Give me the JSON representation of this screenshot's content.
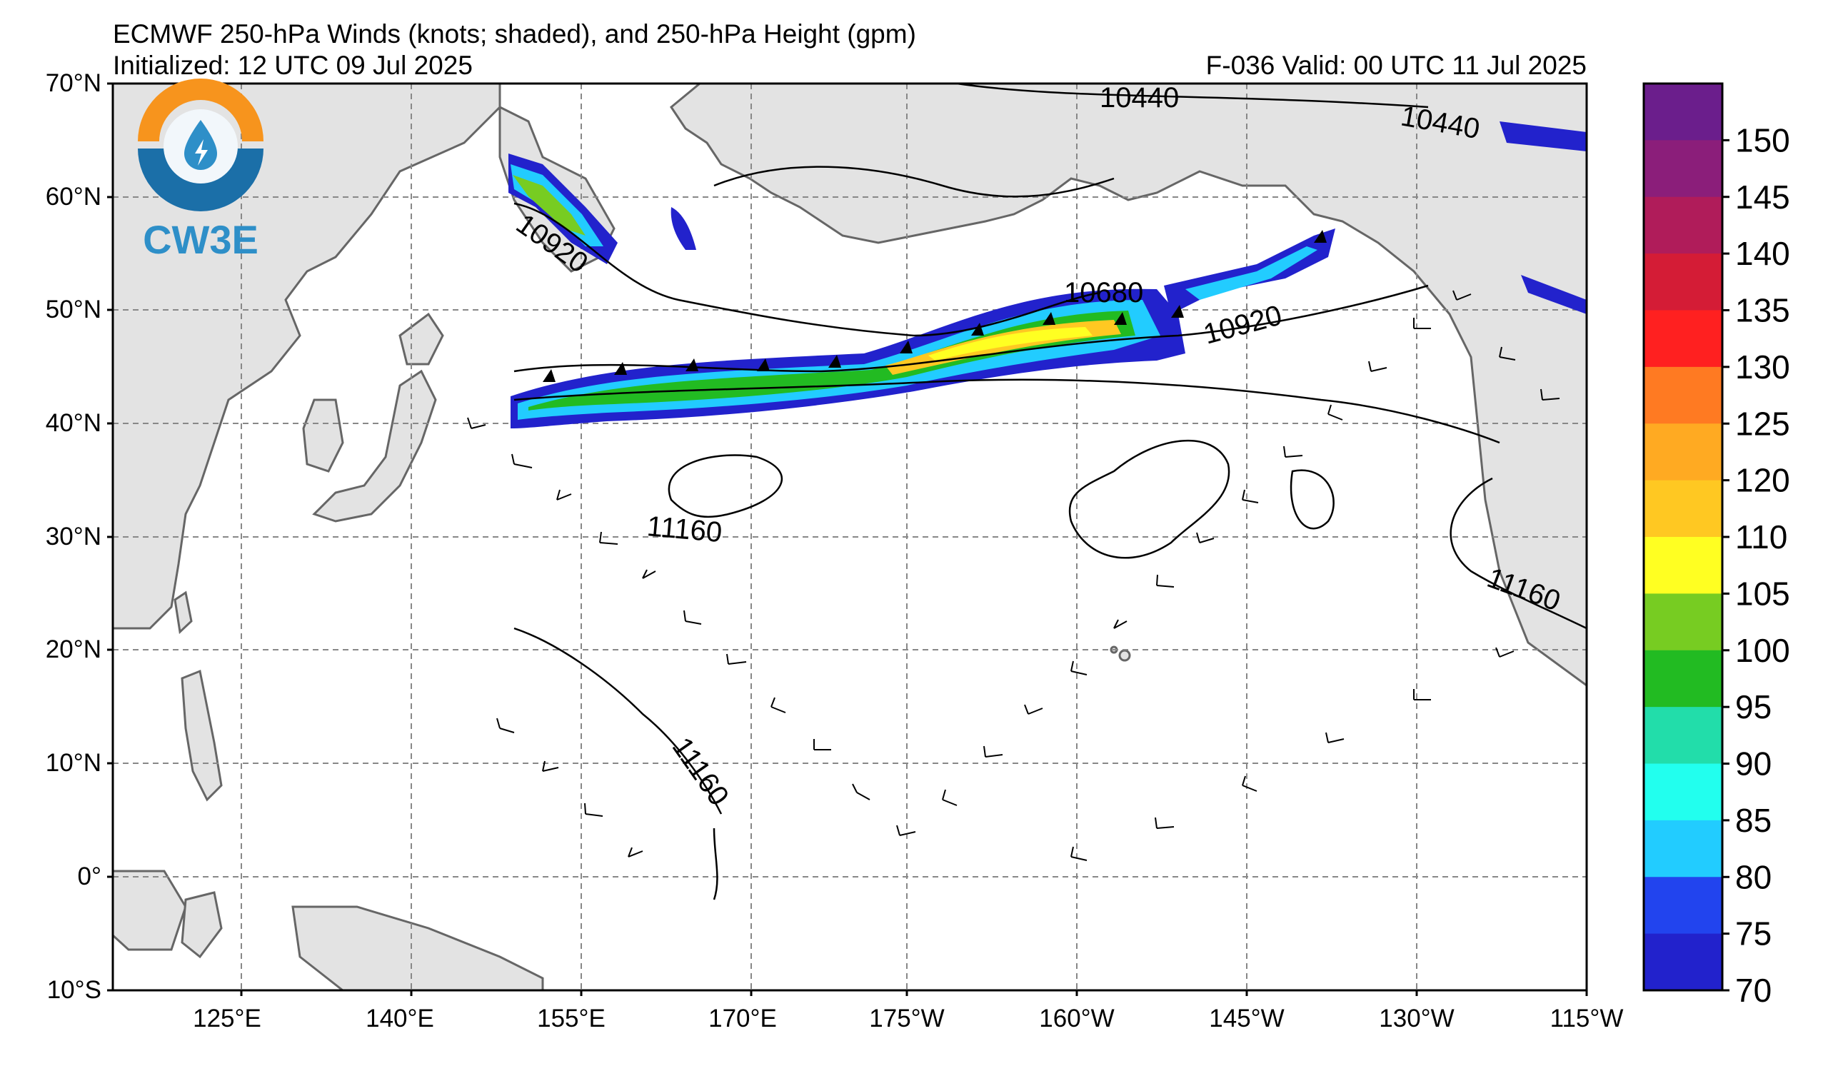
{
  "header": {
    "title": "ECMWF 250-hPa Winds (knots; shaded), and 250-hPa Height (gpm)",
    "initialized": "Initialized: 12 UTC 09 Jul 2025",
    "forecast": "F-036  Valid: 00 UTC 11 Jul 2025"
  },
  "logo": {
    "text": "CW3E",
    "icon": "water-drop-lightning-icon"
  },
  "map": {
    "lat_labels": [
      "70°N",
      "60°N",
      "50°N",
      "40°N",
      "30°N",
      "20°N",
      "10°N",
      "0°",
      "10°S"
    ],
    "lon_labels": [
      "125°E",
      "140°E",
      "155°E",
      "170°E",
      "175°W",
      "160°W",
      "145°W",
      "130°W",
      "115°W"
    ],
    "contour_labels": [
      "10440",
      "10440",
      "10920",
      "10680",
      "10920",
      "11160",
      "11160",
      "11160"
    ],
    "land_color": "#e3e3e3",
    "coast_color": "#666666",
    "grid": true
  },
  "colorbar": {
    "ticks": [
      "150",
      "145",
      "140",
      "135",
      "130",
      "125",
      "120",
      "110",
      "105",
      "100",
      "95",
      "90",
      "85",
      "80",
      "75",
      "70"
    ],
    "colors": [
      "#6b1e8c",
      "#8b1e7a",
      "#b01c5a",
      "#d41c36",
      "#ff2020",
      "#ff7a22",
      "#ffaa22",
      "#ffc822",
      "#ffff22",
      "#77cc22",
      "#22bb22",
      "#22ddaa",
      "#22ffee",
      "#22ccff",
      "#2244ee",
      "#2222cc"
    ]
  }
}
